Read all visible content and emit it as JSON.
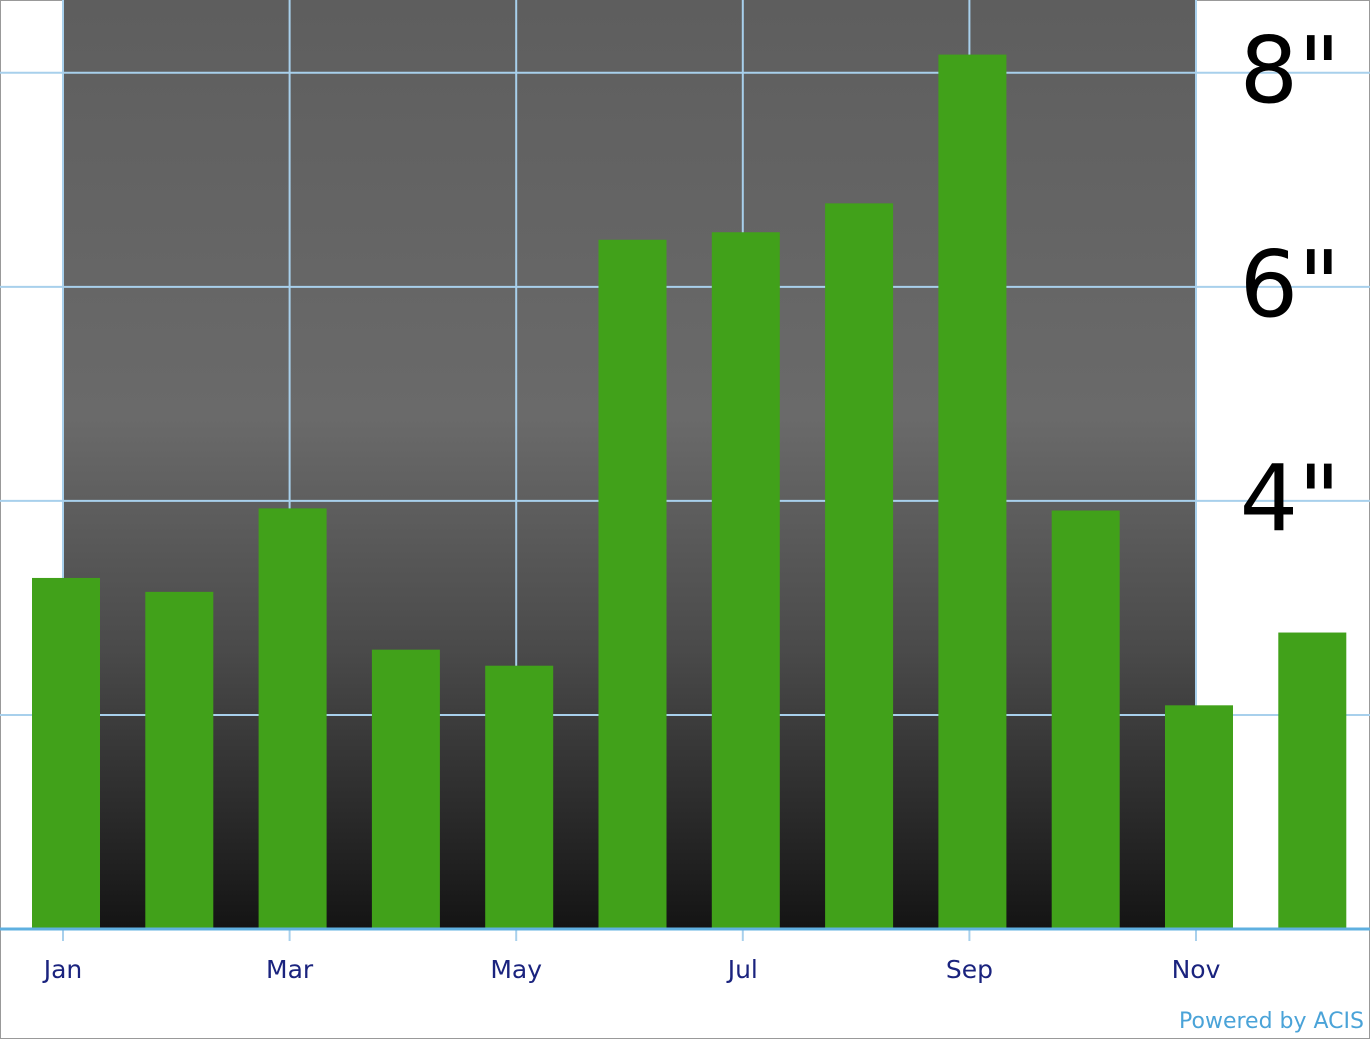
{
  "chart_data": {
    "type": "bar",
    "categories": [
      "Jan",
      null,
      "Mar",
      null,
      "May",
      null,
      "Jul",
      null,
      "Sep",
      null,
      "Nov",
      null
    ],
    "values": [
      3.28,
      3.15,
      3.93,
      2.61,
      2.46,
      6.44,
      6.51,
      6.78,
      8.17,
      3.91,
      2.09,
      2.77
    ],
    "color": "#41a11a",
    "ylim": [
      0,
      8.68
    ],
    "yticks": [
      {
        "value": 2,
        "label": null
      },
      {
        "value": 4,
        "label": "4\""
      },
      {
        "value": 6,
        "label": "6\""
      },
      {
        "value": 8,
        "label": "8\""
      }
    ],
    "grid": true,
    "credit": "Powered by ACIS"
  }
}
